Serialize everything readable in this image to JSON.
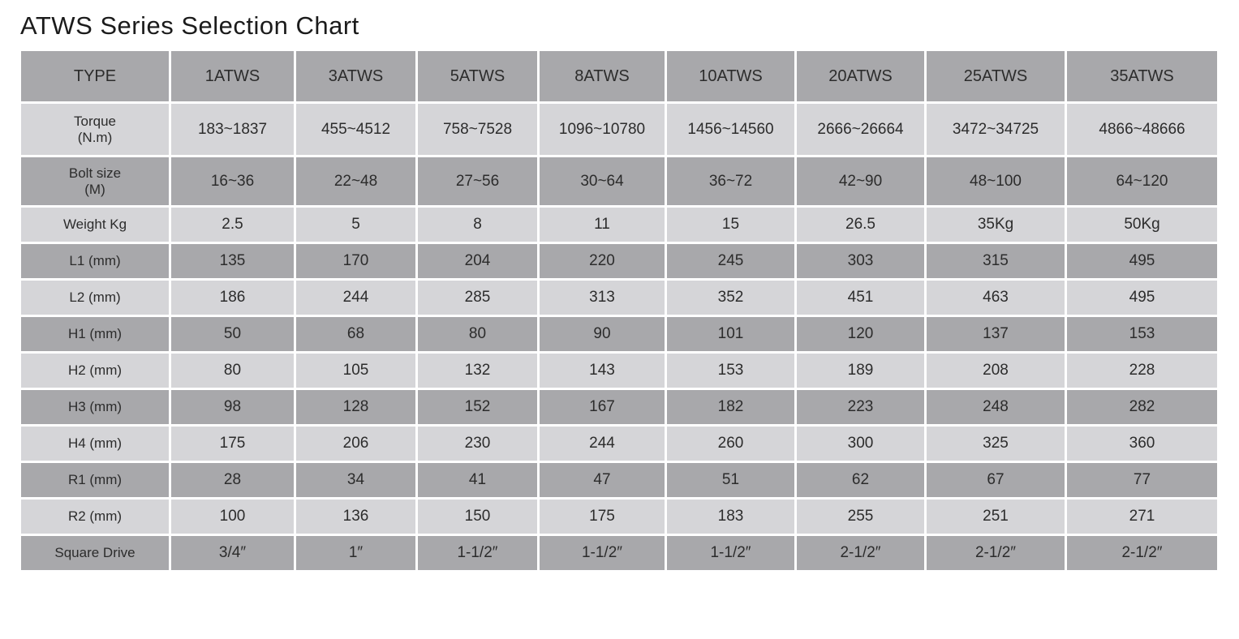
{
  "colors": {
    "row_dark": "#a8a8ab",
    "row_light": "#d5d5d8",
    "grid": "#ffffff",
    "text": "#2c2c2c",
    "title_text": "#1b1b1b"
  },
  "chart_data": {
    "type": "table",
    "title": "ATWS Series Selection Chart",
    "columns": [
      "TYPE",
      "1ATWS",
      "3ATWS",
      "5ATWS",
      "8ATWS",
      "10ATWS",
      "20ATWS",
      "25ATWS",
      "35ATWS"
    ],
    "rows": [
      {
        "label_lines": [
          "Torque",
          "(N.m)"
        ],
        "values": [
          "183~1837",
          "455~4512",
          "758~7528",
          "1096~10780",
          "1456~14560",
          "2666~26664",
          "3472~34725",
          "4866~48666"
        ]
      },
      {
        "label_lines": [
          "Bolt size",
          "(M)"
        ],
        "values": [
          "16~36",
          "22~48",
          "27~56",
          "30~64",
          "36~72",
          "42~90",
          "48~100",
          "64~120"
        ]
      },
      {
        "label_lines": [
          "Weight Kg"
        ],
        "values": [
          "2.5",
          "5",
          "8",
          "11",
          "15",
          "26.5",
          "35Kg",
          "50Kg"
        ]
      },
      {
        "label_lines": [
          "L1 (mm)"
        ],
        "values": [
          "135",
          "170",
          "204",
          "220",
          "245",
          "303",
          "315",
          "495"
        ]
      },
      {
        "label_lines": [
          "L2 (mm)"
        ],
        "values": [
          "186",
          "244",
          "285",
          "313",
          "352",
          "451",
          "463",
          "495"
        ]
      },
      {
        "label_lines": [
          "H1 (mm)"
        ],
        "values": [
          "50",
          "68",
          "80",
          "90",
          "101",
          "120",
          "137",
          "153"
        ]
      },
      {
        "label_lines": [
          "H2 (mm)"
        ],
        "values": [
          "80",
          "105",
          "132",
          "143",
          "153",
          "189",
          "208",
          "228"
        ]
      },
      {
        "label_lines": [
          "H3 (mm)"
        ],
        "values": [
          "98",
          "128",
          "152",
          "167",
          "182",
          "223",
          "248",
          "282"
        ]
      },
      {
        "label_lines": [
          "H4 (mm)"
        ],
        "values": [
          "175",
          "206",
          "230",
          "244",
          "260",
          "300",
          "325",
          "360"
        ]
      },
      {
        "label_lines": [
          "R1 (mm)"
        ],
        "values": [
          "28",
          "34",
          "41",
          "47",
          "51",
          "62",
          "67",
          "77"
        ]
      },
      {
        "label_lines": [
          "R2 (mm)"
        ],
        "values": [
          "100",
          "136",
          "150",
          "175",
          "183",
          "255",
          "251",
          "271"
        ]
      },
      {
        "label_lines": [
          "Square Drive"
        ],
        "values": [
          "3/4″",
          "1″",
          "1-1/2″",
          "1-1/2″",
          "1-1/2″",
          "2-1/2″",
          "2-1/2″",
          "2-1/2″"
        ]
      }
    ]
  }
}
